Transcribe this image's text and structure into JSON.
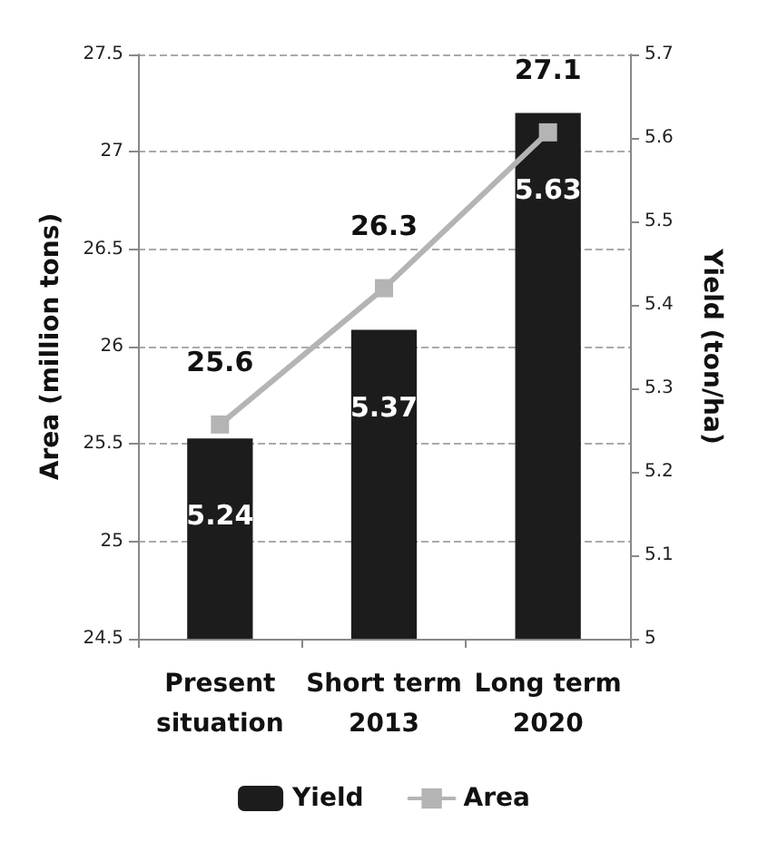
{
  "chart_data": {
    "type": "bar",
    "categories": [
      "Present\nsituation",
      "Short term\n2013",
      "Long term\n2020"
    ],
    "ylabel": "Area (million tons)",
    "y2label": "Yield (ton/ha)",
    "ylim": [
      24.5,
      27.5
    ],
    "yticks": [
      24.5,
      25,
      25.5,
      26,
      26.5,
      27,
      27.5
    ],
    "y2lim": [
      5,
      5.7
    ],
    "y2ticks": [
      5,
      5.1,
      5.2,
      5.3,
      5.4,
      5.5,
      5.6,
      5.7
    ],
    "series": [
      {
        "name": "Yield",
        "axis": "y2",
        "color": "#1c1c1c",
        "values": [
          5.24,
          5.37,
          5.63
        ]
      },
      {
        "name": "Area",
        "type": "line",
        "color": "#b4b4b4",
        "values": [
          25.6,
          26.3,
          27.1
        ],
        "marker": "square"
      }
    ],
    "data_labels": true,
    "grid": "y",
    "legend": "bottom",
    "line_style": "solid"
  }
}
